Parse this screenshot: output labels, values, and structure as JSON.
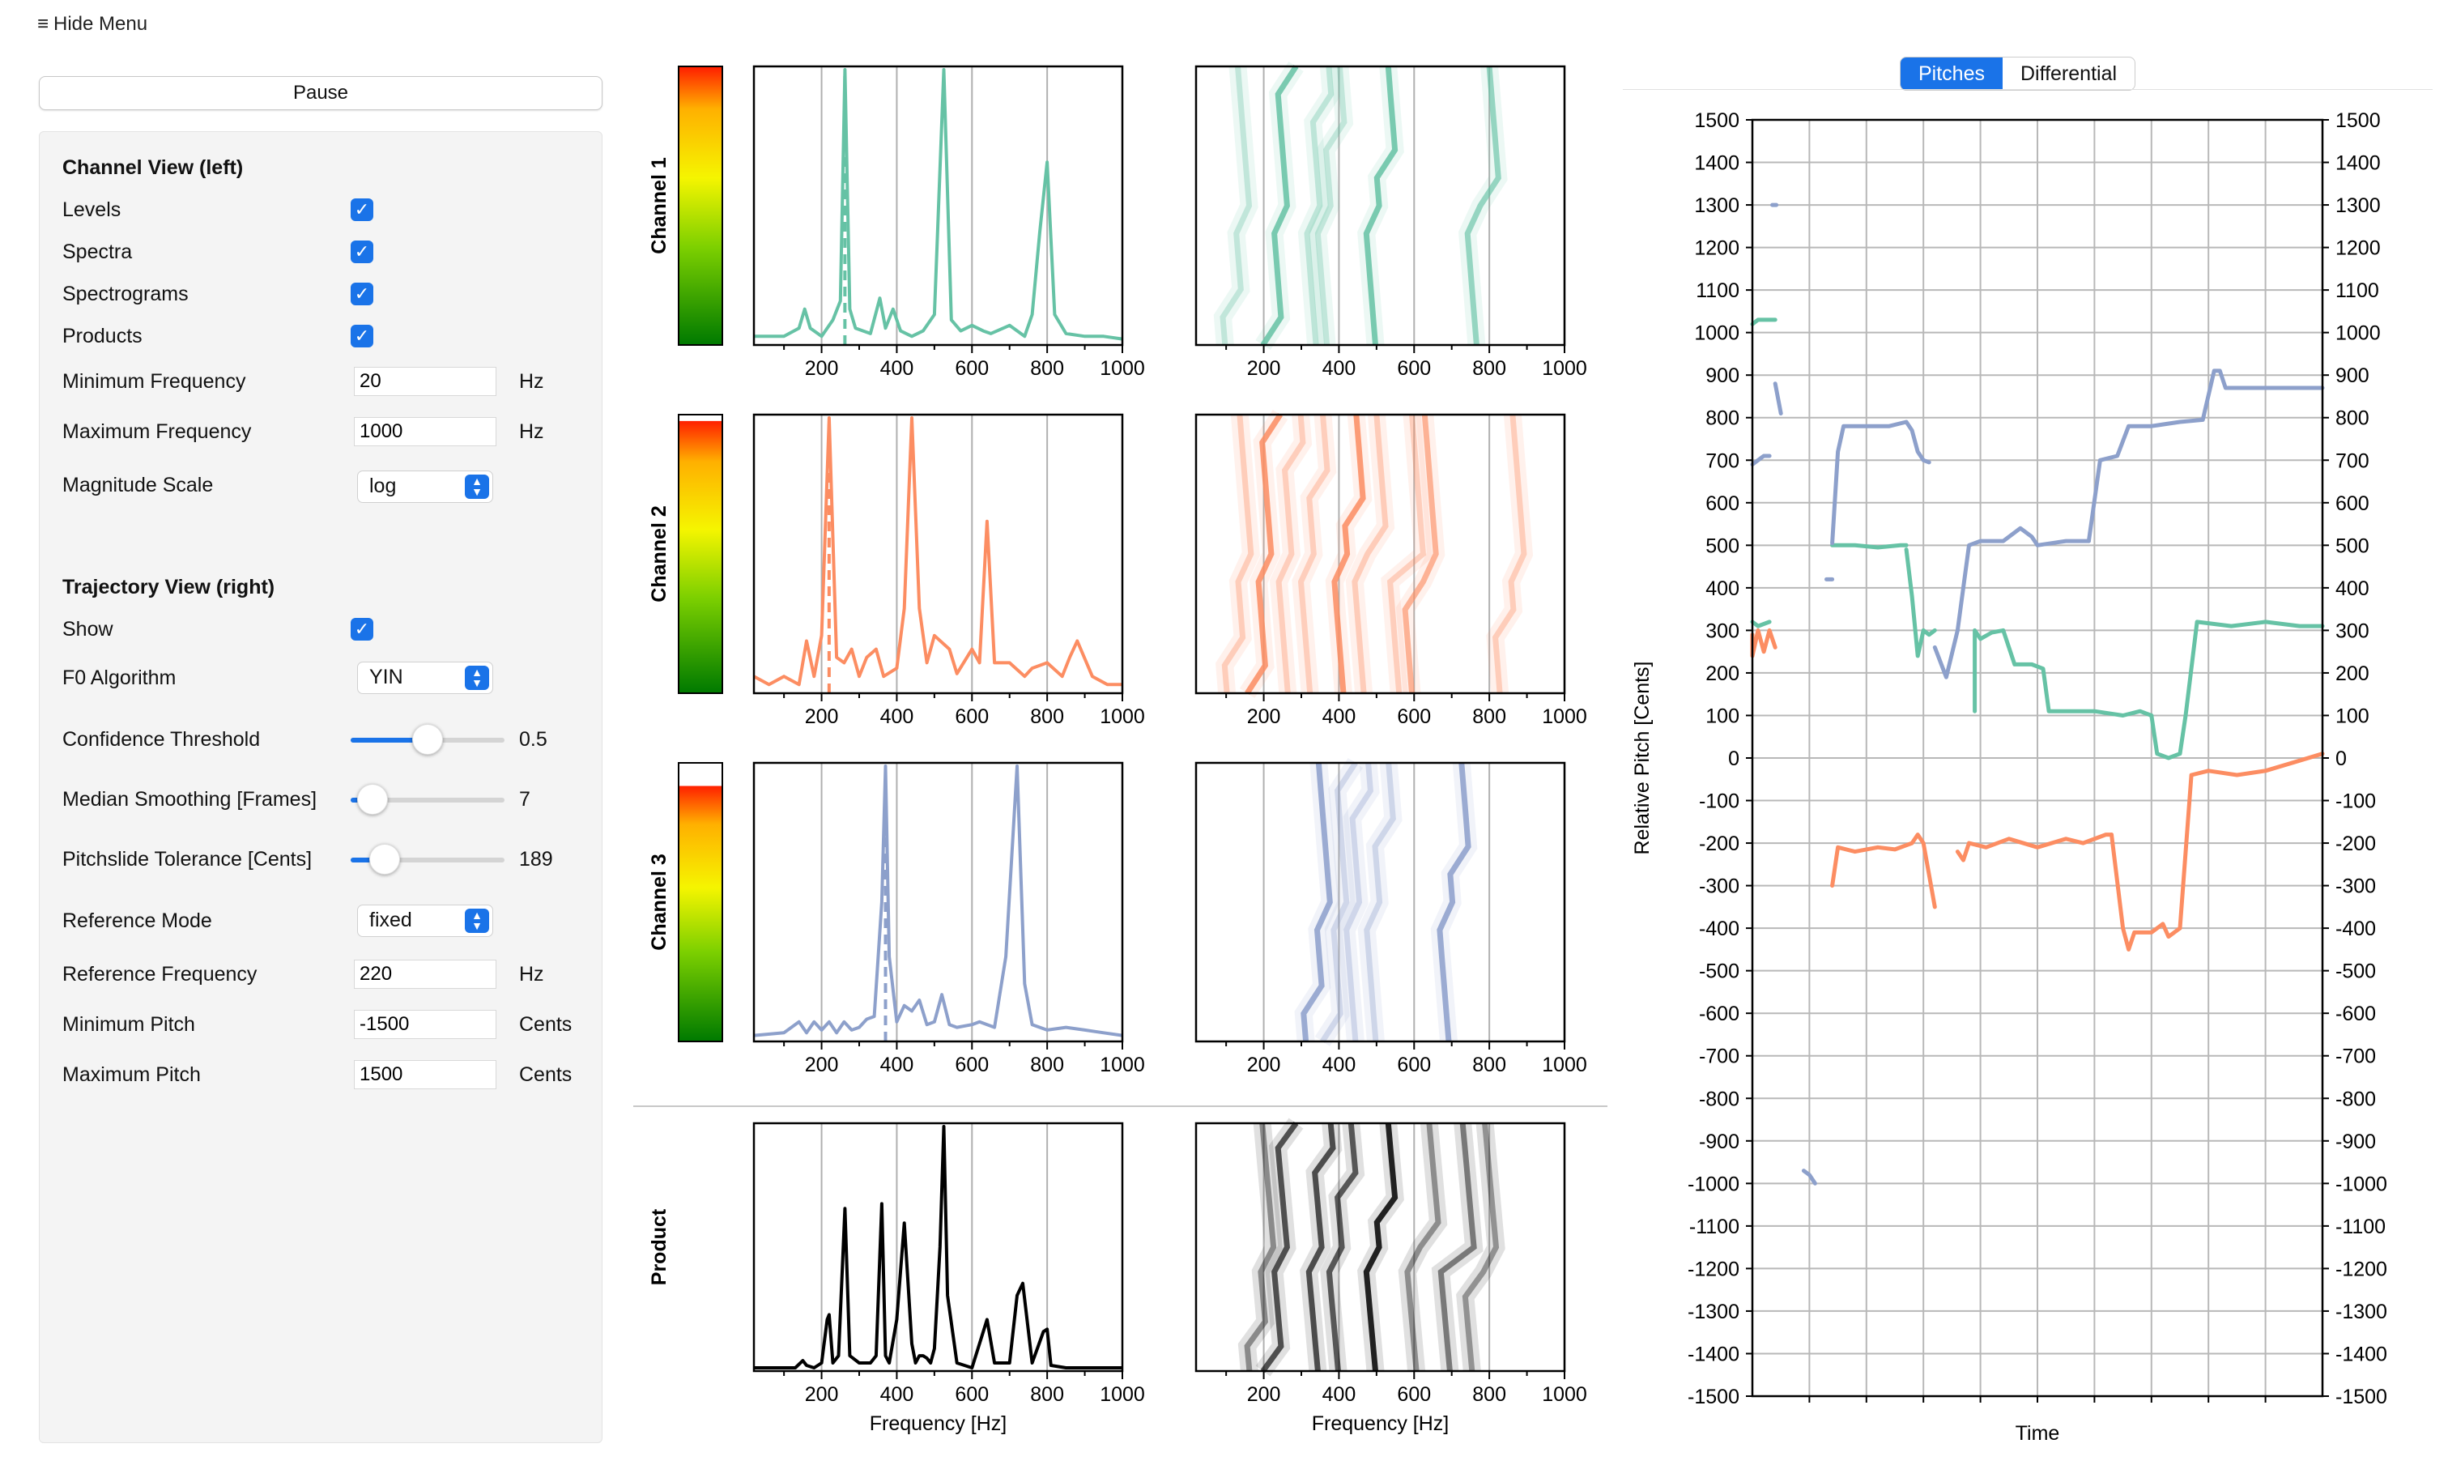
{
  "menu": {
    "hide_menu_label": "Hide Menu"
  },
  "controls": {
    "pause_label": "Pause",
    "channel_view_title": "Channel View (left)",
    "levels_label": "Levels",
    "levels_checked": true,
    "spectra_label": "Spectra",
    "spectra_checked": true,
    "spectrograms_label": "Spectrograms",
    "spectrograms_checked": true,
    "products_label": "Products",
    "products_checked": true,
    "min_freq_label": "Minimum Frequency",
    "min_freq_value": "20",
    "min_freq_unit": "Hz",
    "max_freq_label": "Maximum Frequency",
    "max_freq_value": "1000",
    "max_freq_unit": "Hz",
    "mag_scale_label": "Magnitude Scale",
    "mag_scale_value": "log",
    "trajectory_view_title": "Trajectory View (right)",
    "show_label": "Show",
    "show_checked": true,
    "f0_label": "F0 Algorithm",
    "f0_value": "YIN",
    "confidence_label": "Confidence Threshold",
    "confidence_value": "0.5",
    "confidence_fraction": 0.5,
    "median_label": "Median Smoothing [Frames]",
    "median_value": "7",
    "median_fraction": 0.14,
    "pitchslide_label": "Pitchslide Tolerance [Cents]",
    "pitchslide_value": "189",
    "pitchslide_fraction": 0.22,
    "ref_mode_label": "Reference Mode",
    "ref_mode_value": "fixed",
    "ref_freq_label": "Reference Frequency",
    "ref_freq_value": "220",
    "ref_freq_unit": "Hz",
    "min_pitch_label": "Minimum Pitch",
    "min_pitch_value": "-1500",
    "min_pitch_unit": "Cents",
    "max_pitch_label": "Maximum Pitch",
    "max_pitch_value": "1500",
    "max_pitch_unit": "Cents"
  },
  "channel_view": {
    "rows": [
      {
        "label": "Channel 1",
        "color": "#66c2a5",
        "level": 1.0,
        "peak_marker_hz": 262
      },
      {
        "label": "Channel 2",
        "color": "#fc8d62",
        "level": 0.98,
        "peak_marker_hz": 220
      },
      {
        "label": "Channel 3",
        "color": "#8da0cb",
        "level": 0.92,
        "peak_marker_hz": 370
      },
      {
        "label": "Product",
        "color": "#000000",
        "level": null,
        "peak_marker_hz": null
      }
    ],
    "x_ticks": [
      "200",
      "400",
      "600",
      "800",
      "1000"
    ],
    "x_label": "Frequency [Hz]"
  },
  "trajectory": {
    "tabs": [
      "Pitches",
      "Differential"
    ],
    "active_tab": "Pitches"
  },
  "chart_data": [
    {
      "type": "line",
      "title": "",
      "xlabel": "Frequency [Hz]",
      "ylabel": "",
      "xlim": [
        20,
        1000
      ],
      "series": [
        {
          "name": "Channel 1",
          "color": "#66c2a5",
          "x": [
            20,
            100,
            140,
            155,
            170,
            200,
            230,
            250,
            262,
            275,
            290,
            330,
            355,
            370,
            390,
            410,
            440,
            470,
            500,
            525,
            545,
            570,
            600,
            630,
            650,
            700,
            740,
            760,
            780,
            800,
            820,
            850,
            900,
            950,
            1000
          ],
          "y": [
            0.02,
            0.02,
            0.05,
            0.12,
            0.05,
            0.02,
            0.08,
            0.15,
            1.0,
            0.12,
            0.05,
            0.03,
            0.16,
            0.05,
            0.12,
            0.04,
            0.02,
            0.04,
            0.1,
            1.0,
            0.08,
            0.04,
            0.06,
            0.04,
            0.03,
            0.06,
            0.02,
            0.1,
            0.4,
            0.66,
            0.1,
            0.03,
            0.02,
            0.02,
            0.01
          ]
        },
        {
          "name": "Channel 2",
          "color": "#fc8d62",
          "x": [
            20,
            60,
            100,
            140,
            160,
            180,
            200,
            220,
            240,
            260,
            280,
            300,
            320,
            345,
            365,
            400,
            420,
            440,
            460,
            480,
            500,
            540,
            560,
            600,
            620,
            640,
            660,
            700,
            740,
            760,
            800,
            840,
            860,
            880,
            920,
            960,
            1000
          ],
          "y": [
            0.05,
            0.02,
            0.05,
            0.02,
            0.18,
            0.05,
            0.2,
            1.0,
            0.12,
            0.1,
            0.15,
            0.05,
            0.12,
            0.15,
            0.05,
            0.08,
            0.3,
            1.0,
            0.3,
            0.1,
            0.2,
            0.15,
            0.06,
            0.15,
            0.1,
            0.62,
            0.1,
            0.1,
            0.05,
            0.08,
            0.1,
            0.05,
            0.12,
            0.18,
            0.05,
            0.02,
            0.02
          ]
        },
        {
          "name": "Channel 3",
          "color": "#8da0cb",
          "x": [
            20,
            100,
            140,
            160,
            180,
            200,
            220,
            240,
            260,
            280,
            300,
            320,
            340,
            360,
            370,
            380,
            400,
            420,
            440,
            460,
            480,
            500,
            520,
            540,
            560,
            600,
            620,
            660,
            690,
            720,
            740,
            760,
            800,
            850,
            900,
            950,
            1000
          ],
          "y": [
            0.01,
            0.02,
            0.06,
            0.02,
            0.06,
            0.03,
            0.06,
            0.02,
            0.06,
            0.03,
            0.04,
            0.07,
            0.08,
            0.5,
            1.0,
            0.3,
            0.06,
            0.12,
            0.1,
            0.14,
            0.05,
            0.06,
            0.16,
            0.05,
            0.04,
            0.05,
            0.06,
            0.04,
            0.3,
            1.0,
            0.2,
            0.05,
            0.03,
            0.04,
            0.03,
            0.02,
            0.01
          ]
        },
        {
          "name": "Product",
          "color": "#000000",
          "x": [
            20,
            130,
            150,
            160,
            180,
            200,
            215,
            220,
            230,
            245,
            262,
            275,
            300,
            330,
            345,
            360,
            370,
            380,
            400,
            420,
            440,
            450,
            460,
            470,
            480,
            490,
            500,
            515,
            525,
            535,
            560,
            600,
            620,
            640,
            660,
            700,
            720,
            735,
            760,
            790,
            800,
            810,
            850,
            900,
            1000
          ],
          "y": [
            0,
            0,
            0.03,
            0.01,
            0,
            0.02,
            0.2,
            0.22,
            0.02,
            0.05,
            0.66,
            0.05,
            0.02,
            0.02,
            0.05,
            0.68,
            0.05,
            0.02,
            0.2,
            0.6,
            0.1,
            0.02,
            0.05,
            0.05,
            0.04,
            0.02,
            0.08,
            0.5,
            1.0,
            0.3,
            0.02,
            0,
            0.1,
            0.2,
            0.02,
            0.02,
            0.3,
            0.35,
            0.02,
            0.15,
            0.16,
            0.01,
            0,
            0,
            0
          ]
        }
      ]
    },
    {
      "type": "line",
      "title": "",
      "xlabel": "Time",
      "ylabel": "Relative Pitch [Cents]",
      "ylim": [
        -1500,
        1500
      ],
      "x_unit": "time index 0-100",
      "y_ticks": [
        1500,
        1400,
        1300,
        1200,
        1100,
        1000,
        900,
        800,
        700,
        600,
        500,
        400,
        300,
        200,
        100,
        0,
        -100,
        -200,
        -300,
        -400,
        -500,
        -600,
        -700,
        -800,
        -900,
        -1000,
        -1100,
        -1200,
        -1300,
        -1400,
        -1500
      ],
      "grid": true,
      "series": [
        {
          "name": "Channel 1",
          "color": "#66c2a5",
          "segments": [
            [
              [
                0,
                1020
              ],
              [
                1,
                1030
              ],
              [
                3,
                1030
              ],
              [
                4,
                1030
              ]
            ],
            [
              [
                0,
                320
              ],
              [
                1,
                310
              ],
              [
                3,
                320
              ]
            ],
            [
              [
                14,
                500
              ],
              [
                18,
                500
              ],
              [
                22,
                495
              ],
              [
                26,
                500
              ],
              [
                27,
                500
              ]
            ],
            [
              [
                27,
                490
              ],
              [
                28,
                380
              ],
              [
                29,
                240
              ],
              [
                30,
                300
              ],
              [
                31,
                290
              ],
              [
                32,
                300
              ]
            ],
            [
              [
                39,
                110
              ],
              [
                39,
                300
              ],
              [
                40,
                280
              ],
              [
                42,
                295
              ],
              [
                44,
                300
              ]
            ],
            [
              [
                44,
                300
              ],
              [
                46,
                220
              ],
              [
                49,
                220
              ],
              [
                51,
                210
              ],
              [
                52,
                110
              ],
              [
                60,
                110
              ],
              [
                65,
                100
              ],
              [
                68,
                110
              ],
              [
                70,
                100
              ]
            ],
            [
              [
                70,
                100
              ],
              [
                71,
                10
              ],
              [
                73,
                0
              ],
              [
                75,
                10
              ],
              [
                76,
                100
              ],
              [
                78,
                320
              ],
              [
                84,
                310
              ],
              [
                90,
                320
              ],
              [
                96,
                310
              ],
              [
                100,
                310
              ]
            ]
          ]
        },
        {
          "name": "Channel 2",
          "color": "#fc8d62",
          "segments": [
            [
              [
                0,
                290
              ],
              [
                0,
                240
              ],
              [
                1,
                300
              ],
              [
                2,
                250
              ],
              [
                3,
                300
              ],
              [
                4,
                260
              ]
            ],
            [
              [
                14,
                -300
              ],
              [
                15,
                -210
              ],
              [
                18,
                -220
              ],
              [
                22,
                -210
              ],
              [
                25,
                -215
              ],
              [
                28,
                -200
              ],
              [
                29,
                -180
              ],
              [
                30,
                -200
              ],
              [
                32,
                -350
              ]
            ],
            [
              [
                36,
                -220
              ],
              [
                37,
                -240
              ],
              [
                38,
                -200
              ],
              [
                41,
                -210
              ],
              [
                45,
                -190
              ],
              [
                50,
                -210
              ],
              [
                55,
                -190
              ],
              [
                58,
                -200
              ],
              [
                62,
                -180
              ],
              [
                63,
                -180
              ]
            ],
            [
              [
                63,
                -180
              ],
              [
                65,
                -400
              ],
              [
                66,
                -450
              ],
              [
                67,
                -410
              ],
              [
                70,
                -410
              ],
              [
                72,
                -390
              ],
              [
                73,
                -420
              ],
              [
                74,
                -410
              ],
              [
                75,
                -400
              ]
            ],
            [
              [
                75,
                -400
              ],
              [
                77,
                -40
              ],
              [
                80,
                -30
              ],
              [
                85,
                -40
              ],
              [
                90,
                -30
              ],
              [
                95,
                -10
              ],
              [
                100,
                10
              ]
            ]
          ]
        },
        {
          "name": "Channel 3",
          "color": "#8da0cb",
          "segments": [
            [
              [
                0,
                690
              ],
              [
                1,
                700
              ],
              [
                2,
                710
              ],
              [
                3,
                710
              ]
            ],
            [
              [
                4,
                880
              ],
              [
                5,
                810
              ]
            ],
            [
              [
                3.5,
                1300
              ],
              [
                4.2,
                1300
              ]
            ],
            [
              [
                9,
                -970
              ],
              [
                10,
                -980
              ],
              [
                11,
                -1000
              ]
            ],
            [
              [
                13,
                420
              ],
              [
                14,
                420
              ]
            ],
            [
              [
                14,
                505
              ],
              [
                15,
                720
              ],
              [
                16,
                780
              ],
              [
                20,
                780
              ],
              [
                24,
                780
              ],
              [
                27,
                790
              ],
              [
                28,
                770
              ],
              [
                29,
                720
              ],
              [
                30,
                700
              ],
              [
                31,
                695
              ]
            ],
            [
              [
                32,
                260
              ],
              [
                34,
                190
              ],
              [
                36,
                300
              ],
              [
                38,
                500
              ],
              [
                40,
                510
              ],
              [
                44,
                510
              ],
              [
                47,
                540
              ],
              [
                49,
                520
              ],
              [
                50,
                500
              ],
              [
                55,
                510
              ],
              [
                59,
                510
              ]
            ],
            [
              [
                59,
                510
              ],
              [
                61,
                700
              ],
              [
                64,
                710
              ],
              [
                66,
                780
              ],
              [
                70,
                780
              ],
              [
                75,
                790
              ],
              [
                79,
                795
              ],
              [
                81,
                910
              ],
              [
                82,
                910
              ],
              [
                83,
                870
              ],
              [
                90,
                870
              ],
              [
                100,
                870
              ]
            ]
          ]
        }
      ]
    }
  ]
}
